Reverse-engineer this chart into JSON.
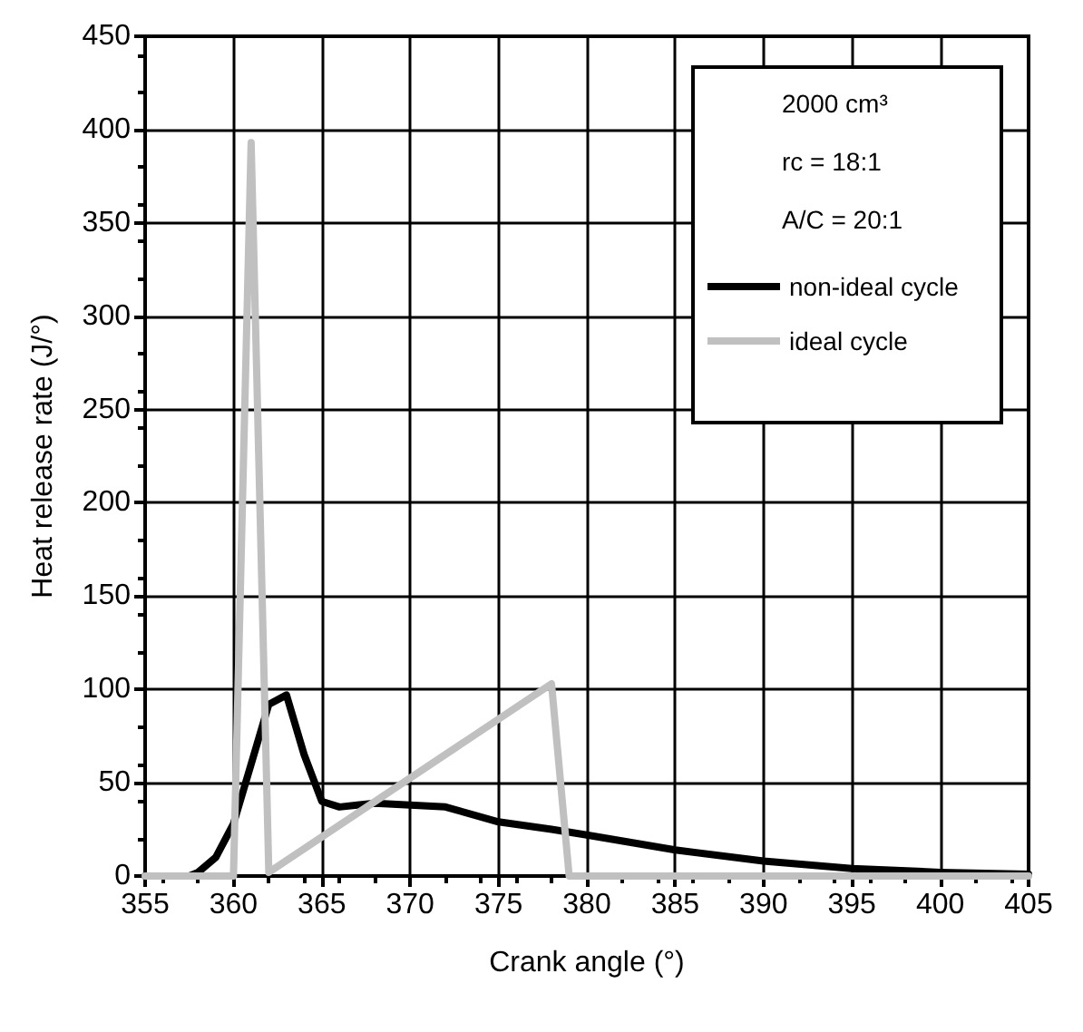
{
  "chart_data": {
    "type": "line",
    "xlabel": "Crank angle (°)",
    "ylabel": "Heat release rate (J/°)",
    "xlim": [
      355,
      405
    ],
    "xticks": [
      355,
      360,
      365,
      370,
      375,
      380,
      385,
      390,
      395,
      400,
      405
    ],
    "ylim": [
      0,
      450
    ],
    "yticks": [
      0,
      50,
      100,
      150,
      200,
      250,
      300,
      350,
      400,
      450
    ],
    "grid": true,
    "legend": "top right",
    "marker": "none",
    "line_style": "solid",
    "annotations": [
      "2000 cm³",
      "rc = 18:1",
      "A/C = 20:1"
    ],
    "series": [
      {
        "name": "non-ideal cycle",
        "color": "#000000",
        "x": [
          355,
          357.5,
          358,
          359,
          360,
          361,
          362,
          363,
          364,
          365,
          366,
          367,
          368,
          370,
          372,
          375,
          378,
          380,
          385,
          390,
          395,
          400,
          405
        ],
        "values": [
          0,
          0,
          2,
          10,
          28,
          60,
          92,
          97,
          65,
          40,
          37,
          38,
          39,
          38,
          37,
          29,
          25,
          22,
          14,
          8,
          4,
          2,
          1
        ]
      },
      {
        "name": "ideal cycle",
        "color": "#c0c0c0",
        "x": [
          355,
          360,
          361,
          362,
          378,
          379,
          405
        ],
        "values": [
          0,
          0,
          393,
          2,
          103,
          0,
          0
        ]
      }
    ]
  }
}
